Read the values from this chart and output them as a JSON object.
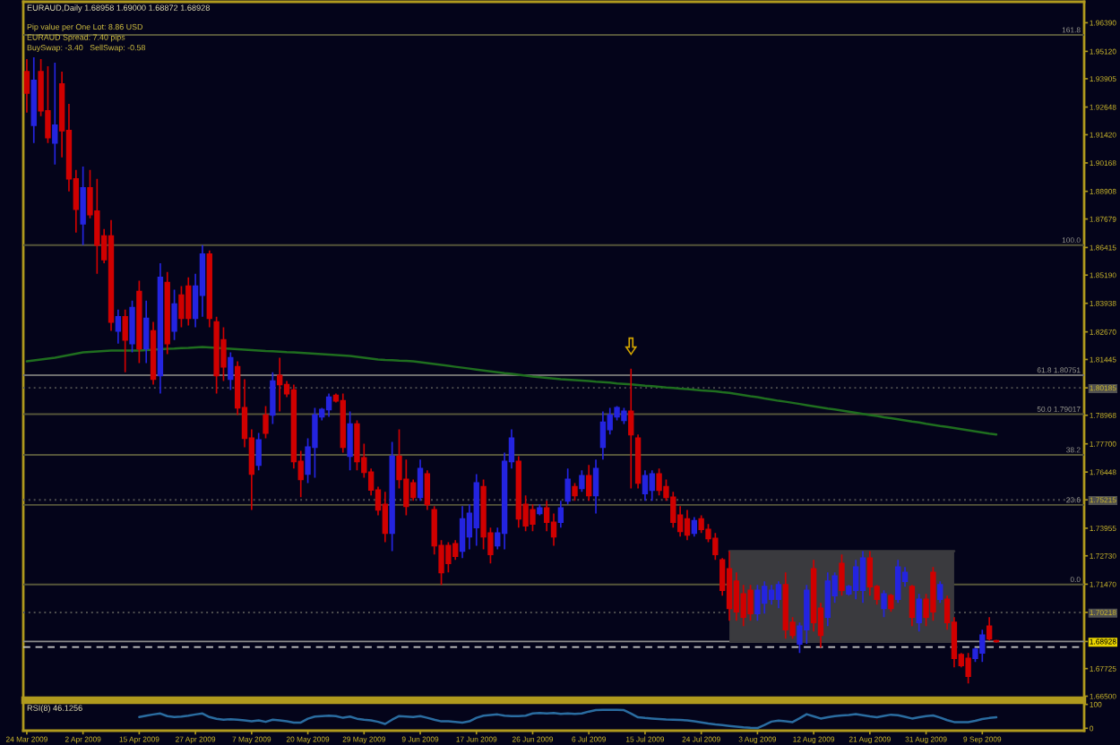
{
  "chart_data": [
    {
      "type": "candlestick",
      "title": "EURAUD,Daily 1.68958 1.69000 1.68872 1.68928",
      "annotations": [
        "Pip value per One Lot: 8.86 USD",
        "EURAUD Spread: 7.40 pips",
        "BuySwap: -3.40   SellSwap: -0.58",
        {
          "text": "161.8",
          "y": 1.9585
        },
        {
          "text": "100.0",
          "y": 1.8652
        },
        {
          "text": "61.8 1.80751",
          "y": 1.80751
        },
        {
          "text": "50.0 1.79017",
          "y": 1.79017
        },
        {
          "text": "38.2",
          "y": 1.7721
        },
        {
          "text": "23.6",
          "y": 1.7499
        },
        {
          "text": "0.0",
          "y": 1.7146
        }
      ],
      "categories": [
        null,
        null,
        null,
        null,
        null,
        null,
        null,
        null,
        null,
        null,
        null,
        null,
        null,
        null,
        null,
        null,
        null,
        null,
        null,
        null,
        null,
        null,
        null,
        null,
        null,
        null,
        null,
        null,
        null,
        null,
        null,
        null,
        null,
        null,
        null,
        null,
        null,
        null,
        null,
        null,
        null,
        null,
        null,
        null,
        null,
        null,
        null,
        null,
        null,
        null,
        null,
        null,
        null,
        null,
        null,
        null,
        null,
        null,
        null,
        null,
        null,
        null,
        null,
        null,
        null,
        null,
        null,
        null,
        null,
        null,
        null,
        null,
        null,
        null,
        null,
        null,
        null,
        null,
        null,
        null,
        null,
        null,
        null,
        null,
        null,
        null,
        null,
        null,
        null,
        null,
        null,
        null,
        null,
        null,
        null,
        null,
        null,
        null,
        null,
        null,
        null,
        null,
        null,
        null,
        null,
        null,
        null,
        null,
        null,
        null,
        null,
        null,
        null,
        null,
        null,
        null,
        null,
        null,
        null,
        null,
        null,
        null,
        null,
        null,
        null,
        null,
        null,
        null,
        null,
        null,
        null,
        null,
        null,
        null,
        null,
        null,
        null,
        null,
        null
      ],
      "ohlc": [
        [
          1.9422,
          1.9478,
          1.924,
          1.9327
        ],
        [
          1.9184,
          1.9486,
          1.9105,
          1.9383
        ],
        [
          1.9422,
          1.9478,
          1.9224,
          1.9248
        ],
        [
          1.9248,
          1.9446,
          1.9105,
          1.9129
        ],
        [
          1.9105,
          1.9462,
          1.901,
          1.9184
        ],
        [
          1.9367,
          1.9422,
          1.9041,
          1.916
        ],
        [
          1.916,
          1.9279,
          1.889,
          1.8946
        ],
        [
          1.8946,
          1.8986,
          1.8708,
          1.8811
        ],
        [
          1.8747,
          1.9001,
          1.8652,
          1.8906
        ],
        [
          1.8906,
          1.8986,
          1.8771,
          1.8787
        ],
        [
          1.8803,
          1.8946,
          1.8525,
          1.8652
        ],
        [
          1.8692,
          1.8724,
          1.8572,
          1.8588
        ],
        [
          1.8692,
          1.8763,
          1.8271,
          1.8311
        ],
        [
          1.8271,
          1.8366,
          1.8215,
          1.8334
        ],
        [
          1.8334,
          1.8366,
          1.8088,
          1.8231
        ],
        [
          1.8215,
          1.8406,
          1.8176,
          1.8374
        ],
        [
          1.8446,
          1.8494,
          1.8128,
          1.8192
        ],
        [
          1.8192,
          1.8406,
          1.8128,
          1.8327
        ],
        [
          1.8271,
          1.8311,
          1.8033,
          1.8057
        ],
        [
          1.8073,
          1.8572,
          1.7993,
          1.8509
        ],
        [
          1.8486,
          1.8533,
          1.8168,
          1.8215
        ],
        [
          1.8271,
          1.8454,
          1.8231,
          1.839
        ],
        [
          1.843,
          1.847,
          1.8287,
          1.8327
        ],
        [
          1.847,
          1.8509,
          1.8295,
          1.8327
        ],
        [
          1.8327,
          1.8525,
          1.8287,
          1.847
        ],
        [
          1.843,
          1.8652,
          1.8334,
          1.8612
        ],
        [
          1.8612,
          1.8628,
          1.8287,
          1.8327
        ],
        [
          1.8311,
          1.8334,
          1.7993,
          1.8073
        ],
        [
          1.8231,
          1.8287,
          1.8049,
          1.8112
        ],
        [
          1.8057,
          1.8176,
          1.8009,
          1.8152
        ],
        [
          1.8112,
          1.8136,
          1.7898,
          1.793
        ],
        [
          1.793,
          1.8057,
          1.7755,
          1.7795
        ],
        [
          1.7795,
          1.7834,
          1.7477,
          1.7636
        ],
        [
          1.7676,
          1.7818,
          1.7652,
          1.7787
        ],
        [
          1.7898,
          1.7938,
          1.7795,
          1.7818
        ],
        [
          1.7898,
          1.8088,
          1.7858,
          1.8049
        ],
        [
          1.8073,
          1.8152,
          1.7914,
          1.8033
        ],
        [
          1.8033,
          1.8049,
          1.7977,
          1.7993
        ],
        [
          1.8009,
          1.8033,
          1.766,
          1.7692
        ],
        [
          1.7692,
          1.7739,
          1.7533,
          1.7612
        ],
        [
          1.7636,
          1.7795,
          1.7596,
          1.7755
        ],
        [
          1.7755,
          1.793,
          1.762,
          1.7898
        ],
        [
          1.789,
          1.793,
          1.7874,
          1.7922
        ],
        [
          1.7922,
          1.7993,
          1.789,
          1.7977
        ],
        [
          1.7985,
          1.7993,
          1.7954,
          1.7961
        ],
        [
          1.7961,
          1.7993,
          1.7731,
          1.7755
        ],
        [
          1.7715,
          1.7914,
          1.7652,
          1.7858
        ],
        [
          1.7858,
          1.7874,
          1.7652,
          1.7692
        ],
        [
          1.7708,
          1.7771,
          1.762,
          1.7644
        ],
        [
          1.7644,
          1.766,
          1.7541,
          1.7565
        ],
        [
          1.7565,
          1.758,
          1.7453,
          1.7477
        ],
        [
          1.7501,
          1.7557,
          1.7334,
          1.7374
        ],
        [
          1.7374,
          1.7779,
          1.7294,
          1.7715
        ],
        [
          1.7715,
          1.7834,
          1.7572,
          1.7612
        ],
        [
          1.7612,
          1.77,
          1.7453,
          1.7493
        ],
        [
          1.7596,
          1.7612,
          1.7517,
          1.7533
        ],
        [
          1.7533,
          1.77,
          1.7517,
          1.766
        ],
        [
          1.7636,
          1.7652,
          1.7477,
          1.7501
        ],
        [
          1.7477,
          1.7493,
          1.7279,
          1.7318
        ],
        [
          1.7318,
          1.7342,
          1.7144,
          1.7199
        ],
        [
          1.7318,
          1.7334,
          1.7199,
          1.7239
        ],
        [
          1.7326,
          1.7342,
          1.7255,
          1.7271
        ],
        [
          1.7294,
          1.7493,
          1.7263,
          1.7437
        ],
        [
          1.7358,
          1.7501,
          1.7302,
          1.7461
        ],
        [
          1.7398,
          1.7636,
          1.7318,
          1.7596
        ],
        [
          1.758,
          1.7612,
          1.7302,
          1.7358
        ],
        [
          1.7374,
          1.7398,
          1.7239,
          1.7279
        ],
        [
          1.7318,
          1.7398,
          1.7302,
          1.7374
        ],
        [
          1.7374,
          1.7731,
          1.7302,
          1.7692
        ],
        [
          1.7692,
          1.7834,
          1.766,
          1.7795
        ],
        [
          1.7692,
          1.7715,
          1.7398,
          1.7437
        ],
        [
          1.7501,
          1.7541,
          1.7382,
          1.7406
        ],
        [
          1.7477,
          1.7501,
          1.7382,
          1.7414
        ],
        [
          1.7461,
          1.7501,
          1.7453,
          1.7485
        ],
        [
          1.7485,
          1.7517,
          1.7382,
          1.7422
        ],
        [
          1.7422,
          1.7461,
          1.7318,
          1.7358
        ],
        [
          1.7422,
          1.7517,
          1.7398,
          1.7485
        ],
        [
          1.7517,
          1.766,
          1.7501,
          1.7612
        ],
        [
          1.758,
          1.7596,
          1.7517,
          1.7541
        ],
        [
          1.7572,
          1.7652,
          1.7557,
          1.7628
        ],
        [
          1.7628,
          1.7676,
          1.7517,
          1.7541
        ],
        [
          1.7541,
          1.77,
          1.7461,
          1.766
        ],
        [
          1.7755,
          1.7914,
          1.77,
          1.7866
        ],
        [
          1.7834,
          1.793,
          1.7811,
          1.7898
        ],
        [
          1.789,
          1.7938,
          1.7874,
          1.793
        ],
        [
          1.7874,
          1.793,
          1.7858,
          1.7914
        ],
        [
          1.7914,
          1.8104,
          1.7572,
          1.7811
        ],
        [
          1.7795,
          1.7811,
          1.7572,
          1.7596
        ],
        [
          1.7549,
          1.7652,
          1.7517,
          1.7628
        ],
        [
          1.7564,
          1.7652,
          1.7517,
          1.7636
        ],
        [
          1.7636,
          1.766,
          1.7541,
          1.7564
        ],
        [
          1.758,
          1.7612,
          1.7517,
          1.7533
        ],
        [
          1.7533,
          1.7557,
          1.7398,
          1.7422
        ],
        [
          1.7453,
          1.7493,
          1.7358,
          1.7382
        ],
        [
          1.7437,
          1.7477,
          1.7342,
          1.7366
        ],
        [
          1.7374,
          1.7445,
          1.7358,
          1.7429
        ],
        [
          1.7437,
          1.7453,
          1.7374,
          1.739
        ],
        [
          1.739,
          1.7414,
          1.7334,
          1.735
        ],
        [
          1.735,
          1.7374,
          1.7255,
          1.7279
        ],
        [
          1.7255,
          1.7263,
          1.7096,
          1.712
        ],
        [
          1.7215,
          1.7294,
          1.6985,
          1.704
        ],
        [
          1.716,
          1.7199,
          1.6985,
          1.7025
        ],
        [
          1.7104,
          1.7144,
          1.6961,
          1.7001
        ],
        [
          1.712,
          1.7144,
          1.6985,
          1.7017
        ],
        [
          1.7017,
          1.7144,
          1.6985,
          1.712
        ],
        [
          1.7064,
          1.716,
          1.7017,
          1.7136
        ],
        [
          1.708,
          1.7144,
          1.7056,
          1.712
        ],
        [
          1.708,
          1.716,
          1.704,
          1.7144
        ],
        [
          1.7144,
          1.7199,
          1.6905,
          1.6945
        ],
        [
          1.6977,
          1.7001,
          1.6905,
          1.6921
        ],
        [
          1.6882,
          1.6977,
          1.6842,
          1.6961
        ],
        [
          1.6945,
          1.7144,
          1.6882,
          1.712
        ],
        [
          1.7215,
          1.7255,
          1.6937,
          1.6977
        ],
        [
          1.704,
          1.7064,
          1.6866,
          1.6921
        ],
        [
          1.7001,
          1.7199,
          1.6961,
          1.716
        ],
        [
          1.7096,
          1.7199,
          1.7064,
          1.7183
        ],
        [
          1.7239,
          1.7279,
          1.7096,
          1.712
        ],
        [
          1.7104,
          1.7144,
          1.7096,
          1.7136
        ],
        [
          1.712,
          1.7255,
          1.708,
          1.7223
        ],
        [
          1.712,
          1.7294,
          1.7064,
          1.7263
        ],
        [
          1.7263,
          1.7294,
          1.7096,
          1.7136
        ],
        [
          1.7136,
          1.7144,
          1.7056,
          1.708
        ],
        [
          1.704,
          1.712,
          1.7001,
          1.7104
        ],
        [
          1.7096,
          1.7104,
          1.7025,
          1.704
        ],
        [
          1.708,
          1.7255,
          1.7064,
          1.7223
        ],
        [
          1.716,
          1.7223,
          1.7136,
          1.7199
        ],
        [
          1.7136,
          1.7144,
          1.6961,
          1.7001
        ],
        [
          1.6977,
          1.7104,
          1.6937,
          1.708
        ],
        [
          1.708,
          1.7104,
          1.6961,
          1.7001
        ],
        [
          1.7199,
          1.7223,
          1.6985,
          1.7025
        ],
        [
          1.708,
          1.716,
          1.7064,
          1.7144
        ],
        [
          1.708,
          1.7096,
          1.6945,
          1.6977
        ],
        [
          1.6977,
          1.7001,
          1.6778,
          1.6818
        ],
        [
          1.6834,
          1.6842,
          1.6778,
          1.6786
        ],
        [
          1.6818,
          1.6842,
          1.6707,
          1.6739
        ],
        [
          1.6818,
          1.6866,
          1.6802,
          1.6858
        ],
        [
          1.6842,
          1.6945,
          1.6802,
          1.6921
        ],
        [
          1.6961,
          1.7001,
          1.6897,
          1.6905
        ],
        [
          1.68958,
          1.69,
          1.68872,
          1.68928
        ]
      ],
      "colors": [
        "#d00000",
        "#2424e0",
        "#d00000",
        "#d00000",
        "#2424e0",
        "#d00000",
        "#d00000",
        "#d00000",
        "#2424e0",
        "#d00000",
        "#d00000",
        "#d00000",
        "#d00000",
        "#2424e0",
        "#d00000",
        "#2424e0",
        "#d00000",
        "#2424e0",
        "#d00000",
        "#2424e0",
        "#d00000",
        "#2424e0",
        "#d00000",
        "#d00000",
        "#2424e0",
        "#2424e0",
        "#d00000",
        "#d00000",
        "#d00000",
        "#2424e0",
        "#d00000",
        "#d00000",
        "#d00000",
        "#2424e0",
        "#d00000",
        "#2424e0",
        "#d00000",
        "#d00000",
        "#d00000",
        "#d00000",
        "#2424e0",
        "#2424e0",
        "#2424e0",
        "#2424e0",
        "#d00000",
        "#d00000",
        "#2424e0",
        "#d00000",
        "#d00000",
        "#d00000",
        "#d00000",
        "#d00000",
        "#2424e0",
        "#d00000",
        "#d00000",
        "#d00000",
        "#2424e0",
        "#d00000",
        "#d00000",
        "#d00000",
        "#d00000",
        "#d00000",
        "#2424e0",
        "#2424e0",
        "#2424e0",
        "#d00000",
        "#d00000",
        "#2424e0",
        "#2424e0",
        "#2424e0",
        "#d00000",
        "#d00000",
        "#d00000",
        "#2424e0",
        "#d00000",
        "#d00000",
        "#2424e0",
        "#2424e0",
        "#d00000",
        "#2424e0",
        "#d00000",
        "#2424e0",
        "#2424e0",
        "#2424e0",
        "#2424e0",
        "#2424e0",
        "#d00000",
        "#d00000",
        "#2424e0",
        "#2424e0",
        "#d00000",
        "#d00000",
        "#d00000",
        "#d00000",
        "#d00000",
        "#2424e0",
        "#d00000",
        "#d00000",
        "#d00000",
        "#d00000",
        "#d00000",
        "#d00000",
        "#d00000",
        "#d00000",
        "#2424e0",
        "#2424e0",
        "#2424e0",
        "#2424e0",
        "#d00000",
        "#d00000",
        "#2424e0",
        "#2424e0",
        "#d00000",
        "#d00000",
        "#2424e0",
        "#2424e0",
        "#d00000",
        "#2424e0",
        "#2424e0",
        "#2424e0",
        "#d00000",
        "#d00000",
        "#2424e0",
        "#d00000",
        "#2424e0",
        "#2424e0",
        "#d00000",
        "#2424e0",
        "#d00000",
        "#d00000",
        "#2424e0",
        "#d00000",
        "#d00000",
        "#d00000",
        "#d00000",
        "#2424e0",
        "#2424e0",
        "#d00000",
        "#d00000"
      ],
      "series": [
        {
          "type": "line",
          "color": "#1f6e1f",
          "values": [
            1.8136,
            1.814,
            1.8144,
            1.8148,
            1.8152,
            1.8158,
            1.8164,
            1.817,
            1.8176,
            1.8178,
            1.818,
            1.8182,
            1.8184,
            1.8184,
            1.8184,
            1.8184,
            1.8184,
            1.8186,
            1.8188,
            1.819,
            1.8192,
            1.8193,
            1.8195,
            1.8196,
            1.8198,
            1.82,
            1.8198,
            1.8196,
            1.8194,
            1.8192,
            1.819,
            1.8188,
            1.8186,
            1.8184,
            1.8182,
            1.8181,
            1.8179,
            1.8177,
            1.8176,
            1.8174,
            1.8172,
            1.817,
            1.8168,
            1.8166,
            1.8164,
            1.8162,
            1.816,
            1.8156,
            1.8152,
            1.8148,
            1.8144,
            1.8142,
            1.8141,
            1.8139,
            1.8138,
            1.8136,
            1.8132,
            1.8128,
            1.8124,
            1.812,
            1.8116,
            1.8112,
            1.8108,
            1.8104,
            1.81,
            1.8096,
            1.8092,
            1.8088,
            1.8084,
            1.8081,
            1.8077,
            1.8073,
            1.8069,
            1.8066,
            1.8063,
            1.806,
            1.8057,
            1.8055,
            1.8053,
            1.8051,
            1.8049,
            1.8046,
            1.8044,
            1.8042,
            1.8038,
            1.8036,
            1.8034,
            1.8031,
            1.8028,
            1.8026,
            1.8023,
            1.802,
            1.8018,
            1.8015,
            1.8013,
            1.801,
            1.8007,
            1.8005,
            1.8003,
            1.7999,
            1.7996,
            1.7991,
            1.7986,
            1.7981,
            1.7977,
            1.7971,
            1.7966,
            1.7961,
            1.7957,
            1.7952,
            1.7947,
            1.7942,
            1.7937,
            1.7932,
            1.7927,
            1.7923,
            1.7918,
            1.7913,
            1.7908,
            1.7903,
            1.7898,
            1.7894,
            1.7888,
            1.7884,
            1.7879,
            1.7874,
            1.7869,
            1.7865,
            1.7859,
            1.7854,
            1.7849,
            1.7845,
            1.784,
            1.7835,
            1.783,
            1.7825,
            1.782,
            1.7815,
            1.7811
          ]
        },
        {
          "type": "line",
          "color": "#3a3a3e",
          "values": [
            null,
            null,
            null,
            null,
            null,
            null,
            null,
            null,
            null,
            null,
            null,
            null,
            null,
            null,
            null,
            null,
            null,
            null,
            null,
            null,
            null,
            null,
            null,
            null,
            null,
            null,
            null,
            null,
            null,
            null,
            null,
            null,
            null,
            null,
            null,
            null,
            null,
            null,
            null,
            null,
            null,
            null,
            null,
            null,
            null,
            null,
            null,
            null,
            null,
            null,
            null,
            null,
            null,
            null,
            null,
            null,
            null,
            null,
            null,
            null,
            null,
            null,
            null,
            null,
            null,
            null,
            null,
            null,
            null,
            null,
            null,
            null,
            null,
            null,
            null,
            null,
            null,
            null,
            null,
            null,
            null,
            null,
            null,
            null,
            null,
            null,
            null,
            null,
            null,
            null,
            null,
            null,
            null,
            null,
            null,
            null,
            null,
            null,
            null,
            null,
            1.7294,
            1.7294,
            1.7294,
            1.7294,
            1.7294,
            1.7294,
            1.7294,
            1.7294,
            1.7294,
            1.7294,
            1.7294,
            1.7294,
            1.7294,
            1.7294,
            1.7294,
            1.7294,
            1.7294,
            1.7294,
            1.7294,
            1.7294,
            1.7294,
            1.7294,
            1.7294,
            1.7294,
            1.7294,
            1.7294,
            1.7294,
            1.7294,
            1.7294,
            1.7294,
            1.7294,
            1.7294,
            1.7294,
            null,
            null,
            null,
            null,
            null,
            null
          ],
          "upper": [
            null,
            null,
            null,
            null,
            null,
            null,
            null,
            null,
            null,
            null,
            null,
            null,
            null,
            null,
            null,
            null,
            null,
            null,
            null,
            null,
            null,
            null,
            null,
            null,
            null,
            null,
            null,
            null,
            null,
            null,
            null,
            null,
            null,
            null,
            null,
            null,
            null,
            null,
            null,
            null,
            null,
            null,
            null,
            null,
            null,
            null,
            null,
            null,
            null,
            null,
            null,
            null,
            null,
            null,
            null,
            null,
            null,
            null,
            null,
            null,
            null,
            null,
            null,
            null,
            null,
            null,
            null,
            null,
            null,
            null,
            null,
            null,
            null,
            null,
            null,
            null,
            null,
            null,
            null,
            null,
            null,
            null,
            null,
            null,
            null,
            null,
            null,
            null,
            null,
            null,
            null,
            null,
            null,
            null,
            null,
            null,
            null,
            null,
            null,
            null,
            1.7294,
            1.7294,
            1.7294,
            1.7294,
            1.7294,
            1.7294,
            1.7294,
            1.7294,
            1.7294,
            1.7294,
            1.7294,
            1.7294,
            1.7294,
            1.7294,
            1.7294,
            1.7294,
            1.7294,
            1.7294,
            1.7294,
            1.7294,
            1.7294,
            1.7294,
            1.7294,
            1.7294,
            1.7294,
            1.7294,
            1.7294,
            1.7294,
            1.7294,
            1.7294,
            1.7294,
            1.7294,
            1.7294,
            null,
            null,
            null,
            null,
            null,
            null
          ],
          "lower": [
            null,
            null,
            null,
            null,
            null,
            null,
            null,
            null,
            null,
            null,
            null,
            null,
            null,
            null,
            null,
            null,
            null,
            null,
            null,
            null,
            null,
            null,
            null,
            null,
            null,
            null,
            null,
            null,
            null,
            null,
            null,
            null,
            null,
            null,
            null,
            null,
            null,
            null,
            null,
            null,
            null,
            null,
            null,
            null,
            null,
            null,
            null,
            null,
            null,
            null,
            null,
            null,
            null,
            null,
            null,
            null,
            null,
            null,
            null,
            null,
            null,
            null,
            null,
            null,
            null,
            null,
            null,
            null,
            null,
            null,
            null,
            null,
            null,
            null,
            null,
            null,
            null,
            null,
            null,
            null,
            null,
            null,
            null,
            null,
            null,
            null,
            null,
            null,
            null,
            null,
            null,
            null,
            null,
            null,
            null,
            null,
            null,
            null,
            null,
            null,
            1.6886,
            1.6886,
            1.6886,
            1.6886,
            1.6886,
            1.6886,
            1.6886,
            1.6886,
            1.6886,
            1.6886,
            1.6886,
            1.6886,
            1.6886,
            1.6886,
            1.6886,
            1.6886,
            1.6886,
            1.6886,
            1.6886,
            1.6886,
            1.6886,
            1.6886,
            1.6886,
            1.6886,
            1.6886,
            1.6886,
            1.6886,
            1.6886,
            1.6886,
            1.6886,
            1.6886,
            1.6886,
            1.6886,
            null,
            null,
            null,
            null,
            null,
            null
          ]
        }
      ],
      "ylim": [
        1.664,
        1.9732
      ],
      "yticks": [
        {
          "value": 1.9639,
          "label": "1.96390"
        },
        {
          "value": 1.9512,
          "label": "1.95120"
        },
        {
          "value": 1.93905,
          "label": "1.93905"
        },
        {
          "value": 1.92648,
          "label": "1.92648"
        },
        {
          "value": 1.9142,
          "label": "1.91420"
        },
        {
          "value": 1.90168,
          "label": "1.90168"
        },
        {
          "value": 1.88908,
          "label": "1.88908"
        },
        {
          "value": 1.87679,
          "label": "1.87679"
        },
        {
          "value": 1.86415,
          "label": "1.86415"
        },
        {
          "value": 1.8519,
          "label": "1.85190"
        },
        {
          "value": 1.83938,
          "label": "1.83938"
        },
        {
          "value": 1.8267,
          "label": "1.82670"
        },
        {
          "value": 1.81445,
          "label": "1.81445"
        },
        {
          "value": 1.80185,
          "label": "1.80185"
        },
        {
          "value": 1.78968,
          "label": "1.78968"
        },
        {
          "value": 1.777,
          "label": "1.77700"
        },
        {
          "value": 1.76448,
          "label": "1.76448"
        },
        {
          "value": 1.75215,
          "label": "1.75215"
        },
        {
          "value": 1.73955,
          "label": "1.73955"
        },
        {
          "value": 1.7273,
          "label": "1.72730"
        },
        {
          "value": 1.7147,
          "label": "1.71470"
        },
        {
          "value": 1.70218,
          "label": "1.70218"
        },
        {
          "value": 1.68928,
          "label": "1.68928"
        },
        {
          "value": 1.67725,
          "label": "1.67725"
        },
        {
          "value": 1.665,
          "label": "1.66500"
        }
      ],
      "ref_lines": [
        {
          "axis": "y",
          "value": 1.9585,
          "color": "#55553a"
        },
        {
          "axis": "y",
          "value": 1.8652,
          "color": "#55553a"
        },
        {
          "axis": "y",
          "value": 1.80751,
          "color": "#6e6e6e"
        },
        {
          "axis": "y",
          "value": 1.79017,
          "color": "#55553a"
        },
        {
          "axis": "y",
          "value": 1.7721,
          "color": "#55553a"
        },
        {
          "axis": "y",
          "value": 1.7499,
          "color": "#55553a"
        },
        {
          "axis": "y",
          "value": 1.7146,
          "color": "#55553a"
        },
        {
          "axis": "y",
          "value": 1.80185,
          "color": "#505050",
          "line_style": "dotted"
        },
        {
          "axis": "y",
          "value": 1.75215,
          "color": "#505050",
          "line_style": "dotted"
        },
        {
          "axis": "y",
          "value": 1.70218,
          "color": "#505050",
          "line_style": "dotted"
        },
        {
          "axis": "y",
          "value": 1.68928,
          "color": "#8a8a8a"
        },
        {
          "axis": "y",
          "value": 1.6868,
          "color": "#c8c8c8",
          "line_style": "dashed"
        }
      ],
      "tick_labels": "y"
    },
    {
      "type": "line",
      "title": "RSI(8) 46.1256",
      "categories": [
        "24 Mar 2009",
        null,
        null,
        null,
        null,
        null,
        null,
        null,
        "2 Apr 2009",
        null,
        null,
        null,
        null,
        null,
        null,
        null,
        "15 Apr 2009",
        null,
        null,
        null,
        null,
        null,
        null,
        null,
        "27 Apr 2009",
        null,
        null,
        null,
        null,
        null,
        null,
        null,
        "7 May 2009",
        null,
        null,
        null,
        null,
        null,
        null,
        null,
        "20 May 2009",
        null,
        null,
        null,
        null,
        null,
        null,
        null,
        "29 May 2009",
        null,
        null,
        null,
        null,
        null,
        null,
        null,
        "9 Jun 2009",
        null,
        null,
        null,
        null,
        null,
        null,
        null,
        "17 Jun 2009",
        null,
        null,
        null,
        null,
        null,
        null,
        null,
        "26 Jun 2009",
        null,
        null,
        null,
        null,
        null,
        null,
        null,
        "6 Jul 2009",
        null,
        null,
        null,
        null,
        null,
        null,
        null,
        "15 Jul 2009",
        null,
        null,
        null,
        null,
        null,
        null,
        null,
        "24 Jul 2009",
        null,
        null,
        null,
        null,
        null,
        null,
        null,
        "3 Aug 2009",
        null,
        null,
        null,
        null,
        null,
        null,
        null,
        "12 Aug 2009",
        null,
        null,
        null,
        null,
        null,
        null,
        null,
        "21 Aug 2009",
        null,
        null,
        null,
        null,
        null,
        null,
        null,
        "31 Aug 2009",
        null,
        null,
        null,
        null,
        null,
        null,
        null,
        "9 Sep 2009",
        null,
        null
      ],
      "series": [
        {
          "color": "#2a6ca0",
          "values": [
            null,
            null,
            null,
            null,
            null,
            null,
            null,
            null,
            null,
            null,
            null,
            null,
            null,
            null,
            null,
            null,
            47,
            53,
            58,
            62,
            51,
            47,
            49,
            53,
            58,
            62,
            47,
            40,
            36,
            38,
            36,
            33,
            29,
            33,
            27,
            36,
            33,
            29,
            24,
            24,
            40,
            49,
            51,
            53,
            51,
            44,
            49,
            40,
            36,
            33,
            27,
            18,
            36,
            51,
            49,
            47,
            51,
            44,
            36,
            29,
            29,
            27,
            24,
            29,
            44,
            53,
            56,
            58,
            53,
            51,
            51,
            53,
            62,
            64,
            62,
            64,
            60,
            62,
            60,
            62,
            70,
            76,
            77,
            77,
            77,
            76,
            62,
            46,
            43,
            41,
            39,
            37,
            36,
            35,
            33,
            29,
            25,
            20,
            16,
            13,
            10,
            7,
            4,
            2,
            1,
            14,
            28,
            32,
            29,
            26,
            42,
            59,
            50,
            41,
            46,
            51,
            54,
            56,
            59,
            55,
            50,
            46,
            52,
            57,
            55,
            48,
            41,
            46,
            51,
            54,
            45,
            34,
            26,
            26,
            26,
            31,
            39,
            43,
            46
          ]
        }
      ],
      "ylim": [
        -10,
        110
      ],
      "yticks": [
        0,
        100
      ]
    }
  ]
}
